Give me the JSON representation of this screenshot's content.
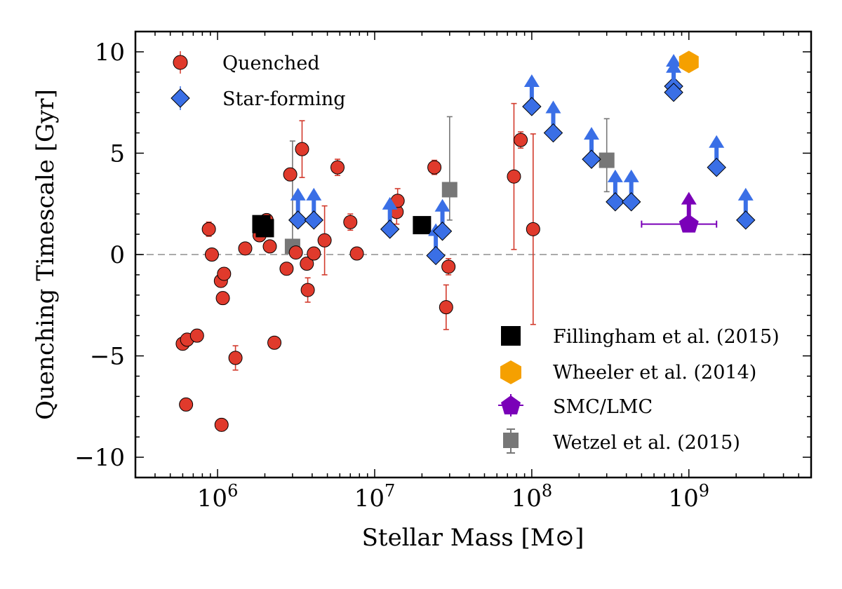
{
  "chart_data": {
    "type": "scatter",
    "title": "",
    "xlabel": "Stellar Mass [M⊙]",
    "ylabel": "Quenching Timescale [Gyr]",
    "xscale": "log",
    "xlim": [
      300000,
      6000000000
    ],
    "ylim": [
      -11,
      11
    ],
    "x_tick_labels": [
      "10^6",
      "10^7",
      "10^8",
      "10^9"
    ],
    "x_tick_values": [
      1000000,
      10000000,
      100000000,
      1000000000
    ],
    "y_tick_labels": [
      "10",
      "5",
      "0",
      "−5",
      "−10"
    ],
    "y_tick_values": [
      10,
      5,
      0,
      -5,
      -10
    ],
    "reference_line": {
      "y": 0,
      "style": "dashed",
      "color": "#aaaaaa"
    },
    "legend_upper_left": {
      "placement": "upper-left",
      "entries": [
        {
          "label": "Quenched",
          "marker": "circle",
          "color": "#e03a2c"
        },
        {
          "label": "Star-forming",
          "marker": "diamond",
          "color": "#3a6fe6"
        }
      ]
    },
    "legend_lower_right": {
      "placement": "lower-right",
      "entries": [
        {
          "label": "Fillingham et al. (2015)",
          "marker": "square",
          "color": "#000000"
        },
        {
          "label": "Wheeler et al. (2014)",
          "marker": "hexagon",
          "color": "#f5a000"
        },
        {
          "label": "SMC/LMC",
          "marker": "pentagon",
          "color": "#7a00b8"
        },
        {
          "label": "Wetzel et al. (2015)",
          "marker": "square",
          "color": "#777777"
        }
      ]
    },
    "colors": {
      "quenched": "#e03a2c",
      "quenched_err": "#d23a2c",
      "starforming": "#3a6fe6",
      "arrow": "#3a6fe6",
      "fillingham": "#000000",
      "wheeler": "#f5a000",
      "smclmc": "#7a00b8",
      "wetzel": "#777777"
    },
    "series": [
      {
        "name": "Quenched",
        "points": [
          {
            "x": 600000,
            "y": -4.4,
            "yerr": 0.3
          },
          {
            "x": 640000,
            "y": -4.2,
            "yerr": 0.3
          },
          {
            "x": 740000,
            "y": -4.0,
            "yerr": 0.3
          },
          {
            "x": 630000,
            "y": -7.4,
            "yerr": 0.3
          },
          {
            "x": 880000,
            "y": 1.25,
            "yerr": 0.35
          },
          {
            "x": 920000,
            "y": 0.0,
            "yerr": 0.3
          },
          {
            "x": 1050000,
            "y": -1.3,
            "yerr": 0.3
          },
          {
            "x": 1100000,
            "y": -0.95,
            "yerr": 0.3
          },
          {
            "x": 1080000,
            "y": -2.15,
            "yerr": 0.3
          },
          {
            "x": 1060000,
            "y": -8.4,
            "yerr": 0.3
          },
          {
            "x": 1300000,
            "y": -5.1,
            "yerr": 0.6
          },
          {
            "x": 1500000,
            "y": 0.3,
            "yerr": 0.2
          },
          {
            "x": 1850000,
            "y": 0.95,
            "yerr": 0.2
          },
          {
            "x": 2050000,
            "y": 1.7,
            "yerr": 0.2
          },
          {
            "x": 2150000,
            "y": 0.4,
            "yerr": 0.2
          },
          {
            "x": 2300000,
            "y": -4.35,
            "yerr": 0.2
          },
          {
            "x": 2750000,
            "y": -0.7,
            "yerr": 0.3
          },
          {
            "x": 2900000,
            "y": 3.95,
            "yerr": 0.3
          },
          {
            "x": 3150000,
            "y": 0.1,
            "yerr": 0.2
          },
          {
            "x": 3450000,
            "y": 5.2,
            "yerr": 1.4
          },
          {
            "x": 3700000,
            "y": -0.45,
            "yerr": 0.3
          },
          {
            "x": 3750000,
            "y": -1.75,
            "yerr": 0.6
          },
          {
            "x": 4100000,
            "y": 0.05,
            "yerr": 0.2
          },
          {
            "x": 4800000,
            "y": 0.7,
            "yerr": 1.7
          },
          {
            "x": 5800000,
            "y": 4.3,
            "yerr": 0.4
          },
          {
            "x": 7000000,
            "y": 1.6,
            "yerr": 0.4
          },
          {
            "x": 7700000,
            "y": 0.05,
            "yerr": 0.2
          },
          {
            "x": 13800000,
            "y": 2.1,
            "yerr": 0.6
          },
          {
            "x": 14000000,
            "y": 2.65,
            "yerr": 0.6
          },
          {
            "x": 24000000,
            "y": 4.3,
            "yerr": 0.35
          },
          {
            "x": 29500000,
            "y": -0.6,
            "yerr": 0.4
          },
          {
            "x": 28500000,
            "y": -2.6,
            "yerr": 1.1
          },
          {
            "x": 77000000,
            "y": 3.85,
            "yerr": 3.6
          },
          {
            "x": 85000000,
            "y": 5.65,
            "yerr": 0.4
          },
          {
            "x": 102000000,
            "y": 1.25,
            "yerr": 4.7
          }
        ]
      },
      {
        "name": "Star-forming",
        "lower_limits": true,
        "points": [
          {
            "x": 3250000,
            "y": 1.7
          },
          {
            "x": 4100000,
            "y": 1.7
          },
          {
            "x": 12500000,
            "y": 1.25
          },
          {
            "x": 24500000,
            "y": -0.05
          },
          {
            "x": 27000000,
            "y": 1.15
          },
          {
            "x": 100000000,
            "y": 7.3
          },
          {
            "x": 137000000,
            "y": 6.0
          },
          {
            "x": 240000000,
            "y": 4.7
          },
          {
            "x": 340000000,
            "y": 2.6
          },
          {
            "x": 430000000,
            "y": 2.6
          },
          {
            "x": 800000000,
            "y": 8.3
          },
          {
            "x": 800000000,
            "y": 8.0
          },
          {
            "x": 1500000000,
            "y": 4.3
          },
          {
            "x": 2300000000,
            "y": 1.7
          }
        ]
      },
      {
        "name": "Fillingham et al. (2015)",
        "points": [
          {
            "x": 2000000,
            "y": 1.3
          },
          {
            "x": 1900000,
            "y": 1.5
          },
          {
            "x": 20000000,
            "y": 1.45
          }
        ]
      },
      {
        "name": "Wheeler et al. (2014)",
        "points": [
          {
            "x": 1000000000,
            "y": 9.5
          }
        ]
      },
      {
        "name": "SMC/LMC",
        "points": [
          {
            "x": 1000000000,
            "y": 1.5,
            "xerr_low": 500000000,
            "xerr_high": 1500000000,
            "lower_limit": true
          }
        ]
      },
      {
        "name": "Wetzel et al. (2015)",
        "points": [
          {
            "x": 3000000,
            "y": 0.4,
            "ylow": 0.0,
            "yhigh": 5.6
          },
          {
            "x": 30000000,
            "y": 3.2,
            "ylow": 1.7,
            "yhigh": 6.8
          },
          {
            "x": 300000000,
            "y": 4.65,
            "ylow": 3.1,
            "yhigh": 6.7
          }
        ]
      }
    ]
  }
}
